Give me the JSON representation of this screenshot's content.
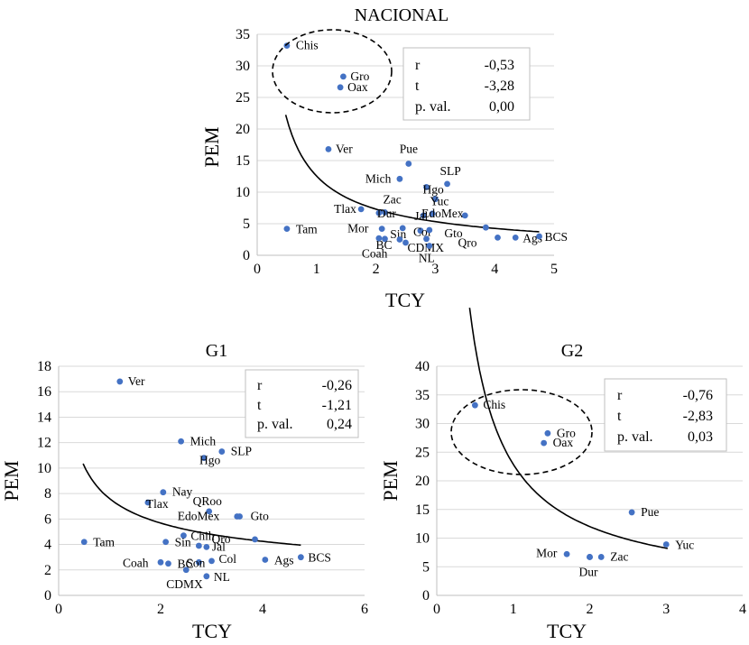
{
  "chart_data": [
    {
      "id": "nacional",
      "type": "scatter",
      "title": "NACIONAL",
      "xlabel": "TCY",
      "ylabel": "PEM",
      "xlim": [
        0,
        5
      ],
      "ylim": [
        0,
        35
      ],
      "xticks": [
        "0",
        "1",
        "2",
        "3",
        "4",
        "5"
      ],
      "yticks": [
        "0",
        "5",
        "10",
        "15",
        "20",
        "25",
        "30",
        "35"
      ],
      "grid": "horizontal",
      "points": [
        {
          "label": "Chis",
          "x": 0.5,
          "y": 33.2
        },
        {
          "label": "Gro",
          "x": 1.45,
          "y": 28.3
        },
        {
          "label": "Oax",
          "x": 1.4,
          "y": 26.6
        },
        {
          "label": "Ver",
          "x": 1.2,
          "y": 16.8
        },
        {
          "label": "Pue",
          "x": 2.55,
          "y": 14.5
        },
        {
          "label": "SLP",
          "x": 3.2,
          "y": 11.3
        },
        {
          "label": "Mich",
          "x": 2.4,
          "y": 12.1
        },
        {
          "label": "Hgo",
          "x": 2.85,
          "y": 10.8
        },
        {
          "label": "Yuc",
          "x": 3.0,
          "y": 8.9
        },
        {
          "label": "Zac",
          "x": 2.15,
          "y": 6.8
        },
        {
          "label": "Tlax",
          "x": 1.75,
          "y": 7.3
        },
        {
          "label": "Dur",
          "x": 2.05,
          "y": 6.7
        },
        {
          "label": "Jal",
          "x": 2.8,
          "y": 6.3
        },
        {
          "label": "EdoMex",
          "x": 2.95,
          "y": 6.6
        },
        {
          "label": "",
          "x": 3.5,
          "y": 6.3
        },
        {
          "label": "Mor",
          "x": 2.1,
          "y": 4.2
        },
        {
          "label": "Sin",
          "x": 2.45,
          "y": 4.3
        },
        {
          "label": "Col",
          "x": 2.75,
          "y": 3.9
        },
        {
          "label": "Gto",
          "x": 3.85,
          "y": 4.4
        },
        {
          "label": "",
          "x": 2.9,
          "y": 4.0
        },
        {
          "label": "Tam",
          "x": 0.5,
          "y": 4.2
        },
        {
          "label": "BC",
          "x": 2.15,
          "y": 2.6
        },
        {
          "label": "",
          "x": 2.05,
          "y": 2.7
        },
        {
          "label": "CDMX",
          "x": 2.5,
          "y": 2.0
        },
        {
          "label": "",
          "x": 2.85,
          "y": 2.6
        },
        {
          "label": "Qro",
          "x": 4.05,
          "y": 2.8
        },
        {
          "label": "Ags",
          "x": 4.35,
          "y": 2.8
        },
        {
          "label": "BCS",
          "x": 4.75,
          "y": 3.0
        },
        {
          "label": "Coah",
          "x": 2.4,
          "y": 2.5
        },
        {
          "label": "NL",
          "x": 2.9,
          "y": 1.5
        }
      ],
      "trend": {
        "type": "power",
        "a": 12.55,
        "b": -0.78,
        "x_from": 0.48,
        "x_to": 4.75
      },
      "stats": {
        "r_label": "r",
        "r": "-0,53",
        "t_label": "t",
        "t": "-3,28",
        "p_label": "p. val.",
        "p": "0,00"
      },
      "ellipse": true
    },
    {
      "id": "g1",
      "type": "scatter",
      "title": "G1",
      "xlabel": "TCY",
      "ylabel": "PEM",
      "xlim": [
        0,
        6
      ],
      "ylim": [
        0,
        18
      ],
      "xticks": [
        "0",
        "2",
        "4",
        "6"
      ],
      "yticks": [
        "0",
        "2",
        "4",
        "6",
        "8",
        "10",
        "12",
        "14",
        "16",
        "18"
      ],
      "grid": "horizontal",
      "points": [
        {
          "label": "Ver",
          "x": 1.2,
          "y": 16.8
        },
        {
          "label": "Mich",
          "x": 2.4,
          "y": 12.1
        },
        {
          "label": "SLP",
          "x": 3.2,
          "y": 11.3
        },
        {
          "label": "Hgo",
          "x": 2.85,
          "y": 10.8
        },
        {
          "label": "Nay",
          "x": 2.05,
          "y": 8.1
        },
        {
          "label": "Tlax",
          "x": 1.75,
          "y": 7.3
        },
        {
          "label": "QRoo",
          "x": 2.95,
          "y": 6.6
        },
        {
          "label": "EdoMex",
          "x": 3.5,
          "y": 6.2
        },
        {
          "label": "Gto",
          "x": 3.55,
          "y": 6.2
        },
        {
          "label": "Chih",
          "x": 2.45,
          "y": 4.7
        },
        {
          "label": "Sin",
          "x": 2.1,
          "y": 4.2
        },
        {
          "label": "Jal",
          "x": 2.9,
          "y": 3.8
        },
        {
          "label": "",
          "x": 2.75,
          "y": 3.9
        },
        {
          "label": "Qro",
          "x": 3.85,
          "y": 4.4
        },
        {
          "label": "Tam",
          "x": 0.5,
          "y": 4.2
        },
        {
          "label": "Coah",
          "x": 2.0,
          "y": 2.6
        },
        {
          "label": "BC",
          "x": 2.15,
          "y": 2.5
        },
        {
          "label": "Son",
          "x": 2.75,
          "y": 2.6
        },
        {
          "label": "Col",
          "x": 3.0,
          "y": 2.7
        },
        {
          "label": "Ags",
          "x": 4.05,
          "y": 2.8
        },
        {
          "label": "BCS",
          "x": 4.75,
          "y": 3.0
        },
        {
          "label": "CDMX",
          "x": 2.5,
          "y": 2.0
        },
        {
          "label": "NL",
          "x": 2.9,
          "y": 1.5
        }
      ],
      "trend": {
        "type": "power",
        "a": 7.6,
        "b": -0.42,
        "x_from": 0.48,
        "x_to": 4.75
      },
      "stats": {
        "r_label": "r",
        "r": "-0,26",
        "t_label": "t",
        "t": "-1,21",
        "p_label": "p. val.",
        "p": "0,24"
      },
      "ellipse": false
    },
    {
      "id": "g2",
      "type": "scatter",
      "title": "G2",
      "xlabel": "TCY",
      "ylabel": "PEM",
      "xlim": [
        0,
        4
      ],
      "ylim": [
        0,
        40
      ],
      "xticks": [
        "0",
        "1",
        "2",
        "3",
        "4"
      ],
      "yticks": [
        "0",
        "5",
        "10",
        "15",
        "20",
        "25",
        "30",
        "35",
        "40"
      ],
      "grid": "horizontal",
      "points": [
        {
          "label": "Chis",
          "x": 0.5,
          "y": 33.2
        },
        {
          "label": "Gro",
          "x": 1.45,
          "y": 28.3
        },
        {
          "label": "Oax",
          "x": 1.4,
          "y": 26.6
        },
        {
          "label": "Pue",
          "x": 2.55,
          "y": 14.5
        },
        {
          "label": "Yuc",
          "x": 3.0,
          "y": 8.9
        },
        {
          "label": "Mor",
          "x": 1.7,
          "y": 7.2
        },
        {
          "label": "Zac",
          "x": 2.15,
          "y": 6.7
        },
        {
          "label": "",
          "x": 2.0,
          "y": 6.7
        },
        {
          "label": "Dur",
          "x": 2.0,
          "y": 6.7
        }
      ],
      "trend": {
        "type": "power",
        "a": 22.9,
        "b": -0.93,
        "x_from": 0.43,
        "x_to": 3.02
      },
      "stats": {
        "r_label": "r",
        "r": "-0,76",
        "t_label": "t",
        "t": "-2,83",
        "p_label": "p. val.",
        "p": "0,03"
      },
      "ellipse": true
    }
  ]
}
